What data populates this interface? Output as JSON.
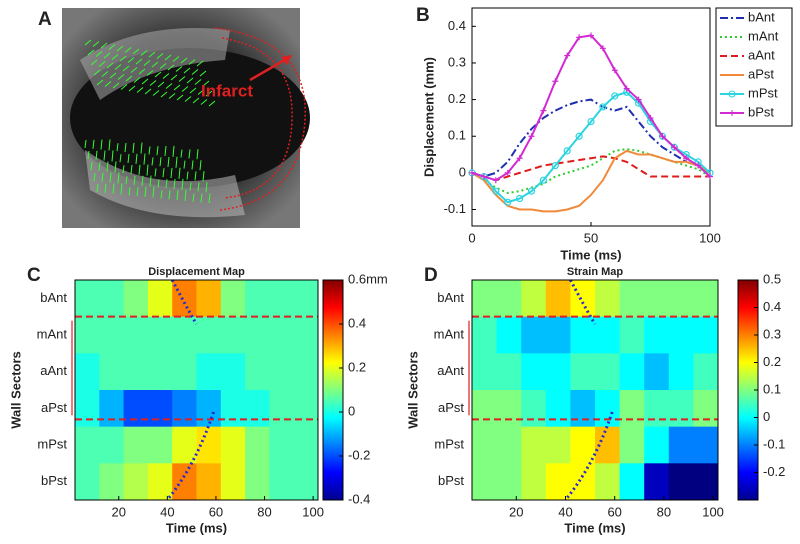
{
  "image_panel": {
    "panel_label": "A",
    "annotation": "Infarct"
  },
  "chart_data": [
    {
      "type": "line",
      "panel_label": "B",
      "xlabel": "Time (ms)",
      "ylabel": "Displacement (mm)",
      "x": [
        0,
        5,
        10,
        15,
        20,
        25,
        30,
        35,
        40,
        45,
        50,
        55,
        60,
        65,
        70,
        75,
        80,
        85,
        90,
        95,
        100
      ],
      "xlim": [
        0,
        100
      ],
      "xticks": [
        0,
        50,
        100
      ],
      "ylim": [
        -0.145,
        0.45
      ],
      "yticks": [
        -0.1,
        0,
        0.1,
        0.2,
        0.3,
        0.4
      ],
      "legend": "right",
      "grid": false,
      "series": [
        {
          "name": "bAnt",
          "color": "#1f2fb0",
          "style": "dash-dot",
          "values": [
            0,
            -0.01,
            0,
            0.03,
            0.08,
            0.12,
            0.15,
            0.17,
            0.185,
            0.195,
            0.2,
            0.18,
            0.17,
            0.18,
            0.14,
            0.1,
            0.07,
            0.05,
            0.03,
            0.02,
            -0.01
          ]
        },
        {
          "name": "mAnt",
          "color": "#2ecc2e",
          "style": "dotted",
          "values": [
            0,
            -0.02,
            -0.04,
            -0.055,
            -0.05,
            -0.04,
            -0.03,
            -0.01,
            0,
            0.01,
            0.02,
            0.04,
            0.06,
            0.065,
            0.06,
            0.05,
            0.04,
            0.03,
            0.02,
            0.01,
            -0.01
          ]
        },
        {
          "name": "aAnt",
          "color": "#e01b1b",
          "style": "dashed",
          "values": [
            0,
            -0.01,
            -0.02,
            -0.01,
            0,
            0.01,
            0.02,
            0.025,
            0.03,
            0.035,
            0.04,
            0.045,
            0.04,
            0.03,
            0.01,
            -0.01,
            -0.01,
            -0.01,
            -0.01,
            -0.01,
            -0.01
          ]
        },
        {
          "name": "aPst",
          "color": "#f08a3a",
          "style": "solid",
          "values": [
            0,
            -0.02,
            -0.06,
            -0.09,
            -0.1,
            -0.1,
            -0.105,
            -0.105,
            -0.1,
            -0.09,
            -0.06,
            -0.02,
            0.04,
            0.06,
            0.05,
            0.05,
            0.04,
            0.03,
            0.03,
            0.02,
            0
          ]
        },
        {
          "name": "mPst",
          "color": "#2ad4e0",
          "style": "solid",
          "marker": "o",
          "values": [
            0,
            -0.01,
            -0.05,
            -0.08,
            -0.07,
            -0.05,
            -0.02,
            0.02,
            0.06,
            0.1,
            0.14,
            0.18,
            0.21,
            0.22,
            0.19,
            0.14,
            0.1,
            0.07,
            0.05,
            0.03,
            0
          ]
        },
        {
          "name": "bPst",
          "color": "#d22ad2",
          "style": "solid",
          "marker": "+",
          "values": [
            0,
            -0.01,
            -0.02,
            0,
            0.04,
            0.1,
            0.17,
            0.25,
            0.32,
            0.37,
            0.375,
            0.34,
            0.28,
            0.23,
            0.2,
            0.15,
            0.1,
            0.07,
            0.04,
            0.02,
            -0.01
          ]
        }
      ]
    },
    {
      "type": "heatmap",
      "panel_label": "C",
      "title": "Displacement Map",
      "xlabel": "Time (ms)",
      "ylabel": "Wall Sectors",
      "categories": [
        "bAnt",
        "mAnt",
        "aAnt",
        "aPst",
        "mPst",
        "bPst"
      ],
      "xlim": [
        2,
        102
      ],
      "xticks": [
        20,
        40,
        60,
        80,
        100
      ],
      "clim": [
        -0.4,
        0.6
      ],
      "cticks": [
        -0.4,
        -0.2,
        0,
        0.2,
        0.4,
        {
          "value": 0.6,
          "label": "0.6mm"
        }
      ],
      "colormap": "jet",
      "z": [
        [
          0.05,
          0.05,
          0.1,
          0.2,
          0.35,
          0.3,
          0.1,
          0.05,
          0.05,
          0.05
        ],
        [
          0.05,
          0.05,
          0.05,
          0.05,
          0.05,
          0.05,
          0.05,
          0.05,
          0.05,
          0.05
        ],
        [
          0,
          0.05,
          0.05,
          0.05,
          0.05,
          0,
          0,
          0.05,
          0.05,
          0.05
        ],
        [
          0,
          -0.1,
          -0.2,
          -0.2,
          -0.15,
          -0.1,
          0,
          0,
          0.05,
          0.05
        ],
        [
          0.05,
          0.05,
          0.1,
          0.1,
          0.2,
          0.25,
          0.2,
          0.1,
          0.05,
          0.05
        ],
        [
          0.05,
          0.1,
          0.15,
          0.2,
          0.35,
          0.3,
          0.2,
          0.1,
          0.05,
          0.05
        ]
      ]
    },
    {
      "type": "heatmap",
      "panel_label": "D",
      "title": "Strain Map",
      "xlabel": "Time (ms)",
      "ylabel": "Wall Sectors",
      "categories": [
        "bAnt",
        "mAnt",
        "aAnt",
        "aPst",
        "mPst",
        "bPst"
      ],
      "xlim": [
        2,
        102
      ],
      "xticks": [
        20,
        40,
        60,
        80,
        100
      ],
      "clim": [
        -0.3,
        0.5
      ],
      "cticks": [
        -0.2,
        -0.1,
        0,
        0.1,
        0.2,
        0.3,
        0.4,
        0.5
      ],
      "colormap": "jet",
      "z": [
        [
          0.1,
          0.1,
          0.15,
          0.25,
          0.2,
          0.15,
          0.1,
          0.1,
          0.1,
          0.1
        ],
        [
          0.05,
          0,
          -0.05,
          -0.05,
          0,
          0,
          0.05,
          0,
          0,
          0
        ],
        [
          0.05,
          0.05,
          0,
          0,
          0.05,
          0.05,
          0,
          -0.05,
          0,
          0.05
        ],
        [
          0.1,
          0.1,
          0.05,
          0,
          -0.05,
          0,
          0.1,
          0.05,
          0.05,
          0.1
        ],
        [
          0.1,
          0.1,
          0.15,
          0.15,
          0.2,
          0.25,
          0.1,
          0,
          -0.1,
          -0.1
        ],
        [
          0.1,
          0.1,
          0.15,
          0.2,
          0.2,
          0.15,
          0,
          -0.25,
          -0.3,
          -0.3
        ]
      ]
    }
  ]
}
